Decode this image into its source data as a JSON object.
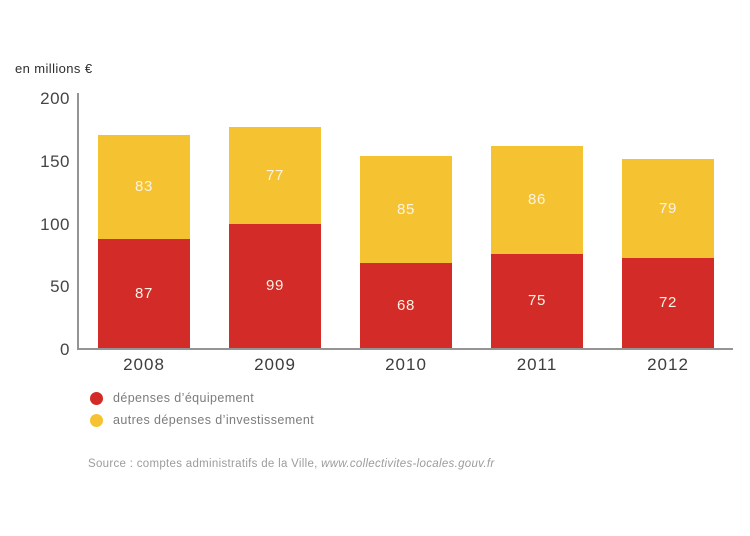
{
  "chart_data": {
    "type": "bar",
    "stacked": true,
    "unit_label": "en millions €",
    "categories": [
      "2008",
      "2009",
      "2010",
      "2011",
      "2012"
    ],
    "series": [
      {
        "name": "dépenses d’équipement",
        "color": "#d32b27",
        "values": [
          87,
          99,
          68,
          75,
          72
        ]
      },
      {
        "name": "autres dépenses d’investissement",
        "color": "#f5c331",
        "values": [
          83,
          77,
          85,
          86,
          79
        ]
      }
    ],
    "totals": [
      170,
      176,
      153,
      161,
      151
    ],
    "ylim": [
      0,
      200
    ],
    "yticks": [
      0,
      50,
      100,
      150,
      200
    ],
    "grid": false,
    "legend_position": "bottom-left",
    "value_labels": true,
    "value_label_color": "#faf3e3",
    "axis_color": "#949494",
    "tick_label_color": "#454545"
  },
  "source": {
    "prefix": "Source : comptes administratifs de la Ville, ",
    "url": "www.collectivites-locales.gouv.fr"
  }
}
